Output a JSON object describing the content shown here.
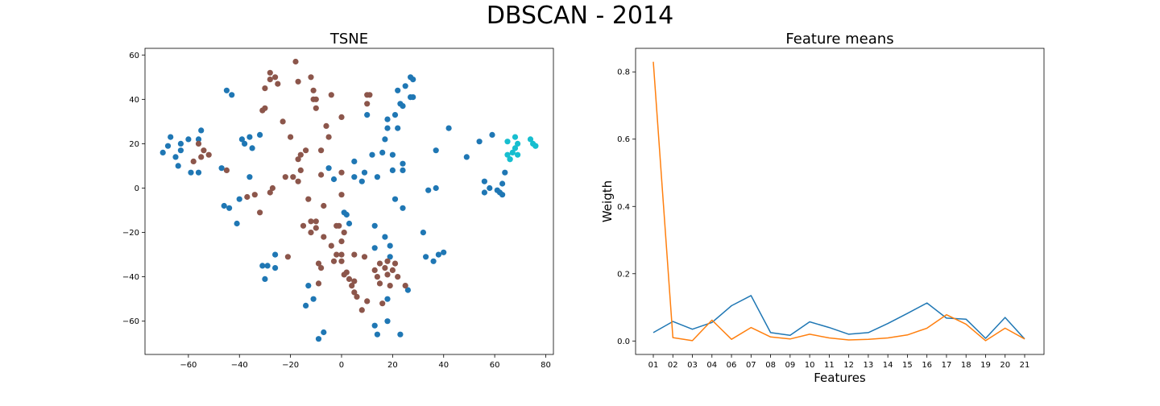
{
  "figure_title": "DBSCAN - 2014",
  "chart_data": [
    {
      "type": "scatter",
      "title": "TSNE",
      "xlabel": "",
      "ylabel": "",
      "xlim": [
        -77,
        83
      ],
      "ylim": [
        -75,
        63
      ],
      "xticks": [
        -60,
        -40,
        -20,
        0,
        20,
        40,
        60,
        80
      ],
      "yticks": [
        -60,
        -40,
        -20,
        0,
        20,
        40,
        60
      ],
      "grid": false,
      "series": [
        {
          "color": "#1f77b4",
          "points": [
            [
              -70,
              16
            ],
            [
              -67,
              23
            ],
            [
              -68,
              19
            ],
            [
              -65,
              14
            ],
            [
              -64,
              10
            ],
            [
              -63,
              17
            ],
            [
              -63,
              20
            ],
            [
              -60,
              22
            ],
            [
              -59,
              7
            ],
            [
              -56,
              7
            ],
            [
              -56,
              22
            ],
            [
              -55,
              26
            ],
            [
              -45,
              44
            ],
            [
              -43,
              42
            ],
            [
              -47,
              9
            ],
            [
              -46,
              -8
            ],
            [
              -44,
              -9
            ],
            [
              -41,
              -16
            ],
            [
              -40,
              -5
            ],
            [
              -39,
              22
            ],
            [
              -38,
              20
            ],
            [
              -36,
              23
            ],
            [
              -35,
              18
            ],
            [
              -36,
              5
            ],
            [
              -32,
              24
            ],
            [
              -31,
              -35
            ],
            [
              -30,
              -41
            ],
            [
              -29,
              -35
            ],
            [
              -26,
              -30
            ],
            [
              -26,
              -36
            ],
            [
              -14,
              -53
            ],
            [
              -13,
              -44
            ],
            [
              -11,
              -50
            ],
            [
              -9,
              -68
            ],
            [
              -7,
              -65
            ],
            [
              -5,
              9
            ],
            [
              -3,
              4
            ],
            [
              2,
              -12
            ],
            [
              1,
              -11
            ],
            [
              3,
              -16
            ],
            [
              5,
              12
            ],
            [
              5,
              5
            ],
            [
              9,
              7
            ],
            [
              8,
              3
            ],
            [
              10,
              33
            ],
            [
              12,
              15
            ],
            [
              13,
              -17
            ],
            [
              13,
              -27
            ],
            [
              13,
              -62
            ],
            [
              14,
              5
            ],
            [
              14,
              -66
            ],
            [
              16,
              16
            ],
            [
              17,
              22
            ],
            [
              17,
              -22
            ],
            [
              18,
              31
            ],
            [
              18,
              27
            ],
            [
              18,
              -60
            ],
            [
              18,
              -50
            ],
            [
              19,
              -26
            ],
            [
              19,
              -31
            ],
            [
              20,
              15
            ],
            [
              20,
              8
            ],
            [
              21,
              33
            ],
            [
              21,
              -5
            ],
            [
              22,
              27
            ],
            [
              22,
              44
            ],
            [
              23,
              -66
            ],
            [
              23,
              38
            ],
            [
              24,
              37
            ],
            [
              24,
              11
            ],
            [
              24,
              8
            ],
            [
              24,
              -9
            ],
            [
              25,
              46
            ],
            [
              26,
              -46
            ],
            [
              27,
              41
            ],
            [
              27,
              50
            ],
            [
              28,
              49
            ],
            [
              28,
              41
            ],
            [
              32,
              -20
            ],
            [
              33,
              -31
            ],
            [
              34,
              -1
            ],
            [
              36,
              -33
            ],
            [
              37,
              0
            ],
            [
              37,
              17
            ],
            [
              38,
              -30
            ],
            [
              40,
              -29
            ],
            [
              42,
              27
            ],
            [
              49,
              14
            ],
            [
              54,
              21
            ],
            [
              56,
              3
            ],
            [
              56,
              -2
            ],
            [
              58,
              0
            ],
            [
              59,
              24
            ],
            [
              61,
              -1
            ],
            [
              62,
              -2
            ],
            [
              63,
              2
            ],
            [
              63,
              -3
            ],
            [
              64,
              7
            ]
          ]
        },
        {
          "color": "#8c564b",
          "points": [
            [
              -58,
              12
            ],
            [
              -56,
              20
            ],
            [
              -55,
              14
            ],
            [
              -54,
              17
            ],
            [
              -52,
              15
            ],
            [
              -45,
              8
            ],
            [
              -37,
              -4
            ],
            [
              -34,
              -3
            ],
            [
              -32,
              -11
            ],
            [
              -31,
              35
            ],
            [
              -30,
              36
            ],
            [
              -30,
              45
            ],
            [
              -28,
              49
            ],
            [
              -28,
              52
            ],
            [
              -28,
              -2
            ],
            [
              -27,
              0
            ],
            [
              -26,
              50
            ],
            [
              -25,
              47
            ],
            [
              -23,
              30
            ],
            [
              -22,
              5
            ],
            [
              -21,
              -31
            ],
            [
              -20,
              23
            ],
            [
              -19,
              5
            ],
            [
              -18,
              57
            ],
            [
              -17,
              48
            ],
            [
              -17,
              13
            ],
            [
              -17,
              3
            ],
            [
              -16,
              8
            ],
            [
              -16,
              15
            ],
            [
              -15,
              -17
            ],
            [
              -14,
              17
            ],
            [
              -13,
              -5
            ],
            [
              -12,
              50
            ],
            [
              -12,
              -20
            ],
            [
              -11,
              44
            ],
            [
              -11,
              40
            ],
            [
              -10,
              36
            ],
            [
              -10,
              40
            ],
            [
              -9,
              -34
            ],
            [
              -9,
              -43
            ],
            [
              -8,
              -36
            ],
            [
              -8,
              17
            ],
            [
              -8,
              6
            ],
            [
              -7,
              -22
            ],
            [
              -7,
              -8
            ],
            [
              -6,
              28
            ],
            [
              -5,
              23
            ],
            [
              -4,
              42
            ],
            [
              -4,
              -26
            ],
            [
              -3,
              -33
            ],
            [
              -2,
              -30
            ],
            [
              -2,
              -17
            ],
            [
              -1,
              -17
            ],
            [
              0,
              -24
            ],
            [
              0,
              -30
            ],
            [
              0,
              -3
            ],
            [
              0,
              7
            ],
            [
              0,
              32
            ],
            [
              0,
              -33
            ],
            [
              1,
              -39
            ],
            [
              1,
              -20
            ],
            [
              2,
              -38
            ],
            [
              3,
              -41
            ],
            [
              4,
              -44
            ],
            [
              5,
              -47
            ],
            [
              5,
              -42
            ],
            [
              5,
              -30
            ],
            [
              6,
              -49
            ],
            [
              8,
              -55
            ],
            [
              9,
              -31
            ],
            [
              10,
              -51
            ],
            [
              10,
              38
            ],
            [
              10,
              42
            ],
            [
              11,
              42
            ],
            [
              13,
              -37
            ],
            [
              14,
              -40
            ],
            [
              15,
              -34
            ],
            [
              15,
              -43
            ],
            [
              16,
              -52
            ],
            [
              17,
              -36
            ],
            [
              18,
              -33
            ],
            [
              18,
              -39
            ],
            [
              19,
              -44
            ],
            [
              20,
              -37
            ],
            [
              21,
              -34
            ],
            [
              22,
              -40
            ],
            [
              25,
              -44
            ],
            [
              -10,
              -15
            ],
            [
              -10,
              -18
            ],
            [
              -12,
              -15
            ]
          ]
        },
        {
          "color": "#17becf",
          "points": [
            [
              65,
              21
            ],
            [
              65,
              15
            ],
            [
              66,
              13
            ],
            [
              66,
              13
            ],
            [
              67,
              16
            ],
            [
              68,
              23
            ],
            [
              68,
              18
            ],
            [
              69,
              15
            ],
            [
              69,
              20
            ],
            [
              74,
              22
            ],
            [
              75,
              20
            ],
            [
              76,
              19
            ],
            [
              76,
              19
            ]
          ]
        }
      ]
    },
    {
      "type": "line",
      "title": "Feature means",
      "xlabel": "Features",
      "ylabel": "Weigth",
      "categories": [
        "01",
        "02",
        "03",
        "04",
        "06",
        "07",
        "08",
        "09",
        "10",
        "11",
        "12",
        "13",
        "14",
        "15",
        "16",
        "17",
        "18",
        "19",
        "20",
        "21"
      ],
      "ylim": [
        -0.04,
        0.87
      ],
      "yticks": [
        0.0,
        0.2,
        0.4,
        0.6,
        0.8
      ],
      "grid": false,
      "series": [
        {
          "color": "#1f77b4",
          "values": [
            0.025,
            0.058,
            0.035,
            0.055,
            0.105,
            0.135,
            0.025,
            0.017,
            0.057,
            0.04,
            0.02,
            0.025,
            0.052,
            0.082,
            0.113,
            0.068,
            0.065,
            0.008,
            0.07,
            0.006
          ]
        },
        {
          "color": "#ff7f0e",
          "values": [
            0.83,
            0.01,
            0.001,
            0.062,
            0.005,
            0.04,
            0.012,
            0.006,
            0.02,
            0.009,
            0.003,
            0.005,
            0.009,
            0.018,
            0.038,
            0.078,
            0.05,
            0.001,
            0.038,
            0.006
          ]
        }
      ]
    }
  ]
}
